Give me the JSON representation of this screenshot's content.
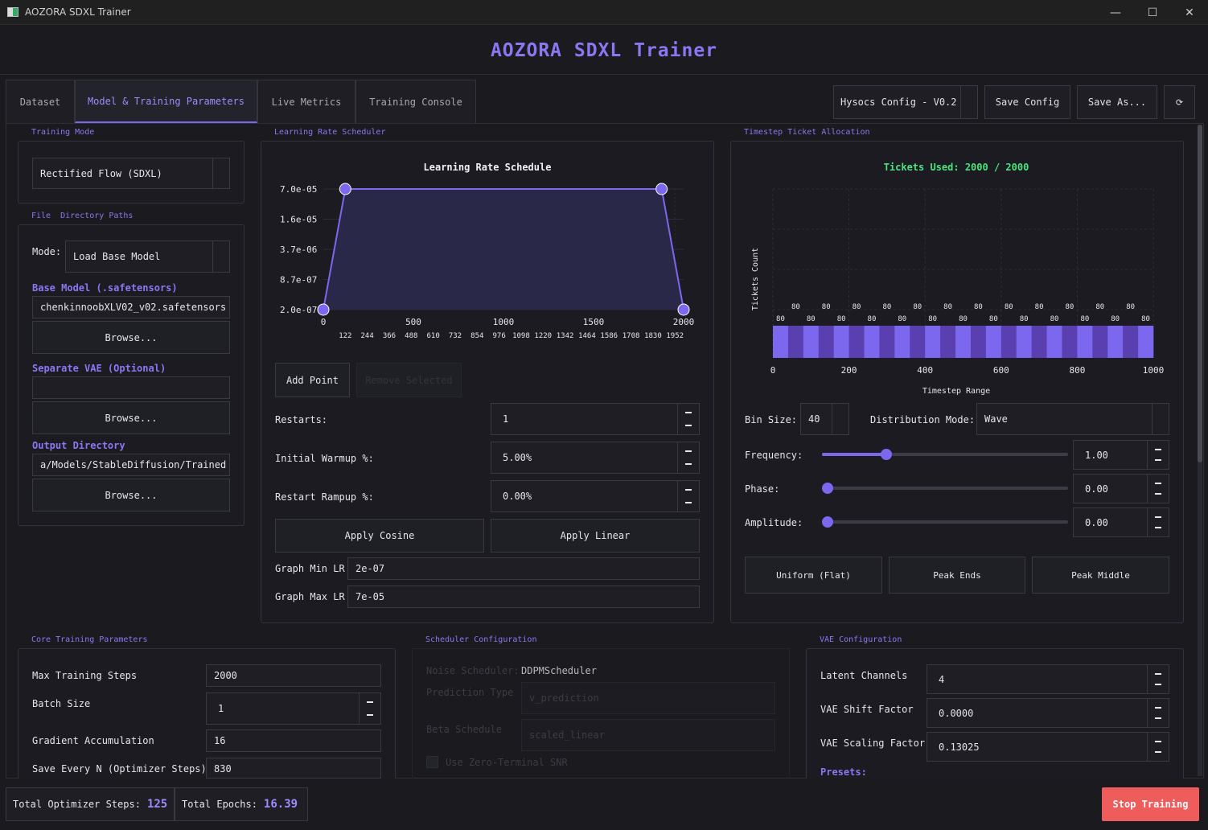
{
  "window": {
    "title": "AOZORA SDXL Trainer",
    "min_label": "—",
    "max_label": "☐",
    "close_label": "✕"
  },
  "app": {
    "title": "AOZORA SDXL Trainer"
  },
  "tabs": [
    {
      "label": "Dataset"
    },
    {
      "label": "Model & Training Parameters"
    },
    {
      "label": "Live Metrics"
    },
    {
      "label": "Training Console"
    }
  ],
  "toolbar": {
    "config_select": "Hysocs Config - V0.2",
    "save_config": "Save Config",
    "save_as": "Save As...",
    "refresh_icon": "⟳"
  },
  "training_mode": {
    "section": "Training Mode",
    "value": "Rectified Flow (SDXL)"
  },
  "paths": {
    "section": "File  Directory Paths",
    "mode_label": "Mode:",
    "mode_value": "Load Base Model",
    "base_model_label": "Base Model (.safetensors)",
    "base_model_value": "chenkinnoobXLV02_v02.safetensors",
    "vae_label": "Separate VAE (Optional)",
    "vae_value": "",
    "output_label": "Output Directory",
    "output_value": "a/Models/StableDiffusion/Trained",
    "browse": "Browse..."
  },
  "lr": {
    "section": "Learning Rate Scheduler",
    "add_point": "Add Point",
    "remove_selected": "Remove Selected",
    "restarts_label": "Restarts:",
    "restarts_value": "1",
    "warmup_label": "Initial Warmup %:",
    "warmup_value": "5.00%",
    "rampup_label": "Restart Rampup %:",
    "rampup_value": "0.00%",
    "apply_cosine": "Apply Cosine",
    "apply_linear": "Apply Linear",
    "min_lr_label": "Graph Min LR",
    "min_lr_value": "2e-07",
    "max_lr_label": "Graph Max LR",
    "max_lr_value": "7e-05"
  },
  "tickets": {
    "section": "Timestep Ticket Allocation",
    "bin_size_label": "Bin Size:",
    "bin_size_value": "40",
    "dist_mode_label": "Distribution Mode:",
    "dist_mode_value": "Wave",
    "frequency_label": "Frequency:",
    "frequency_value": "1.00",
    "frequency_level": 0.25,
    "phase_label": "Phase:",
    "phase_value": "0.00",
    "phase_level": 0,
    "amplitude_label": "Amplitude:",
    "amplitude_value": "0.00",
    "amplitude_level": 0,
    "uniform": "Uniform (Flat)",
    "peak_ends": "Peak Ends",
    "peak_middle": "Peak Middle"
  },
  "core": {
    "section": "Core Training Parameters",
    "max_steps_label": "Max Training Steps",
    "max_steps_value": "2000",
    "batch_label": "Batch Size",
    "batch_value": "1",
    "grad_accum_label": "Gradient Accumulation",
    "grad_accum_value": "16",
    "save_every_label": "Save Every N (Optimizer Steps)",
    "save_every_value": "830"
  },
  "scheduler_cfg": {
    "section": "Scheduler Configuration",
    "noise_label": "Noise Scheduler:",
    "noise_value": "DDPMScheduler",
    "prediction_label": "Prediction Type",
    "prediction_value": "v_prediction",
    "beta_label": "Beta Schedule",
    "beta_value": "scaled_linear",
    "zero_snr_label": "Use Zero-Terminal SNR"
  },
  "vae_cfg": {
    "section": "VAE Configuration",
    "latent_label": "Latent Channels",
    "latent_value": "4",
    "shift_label": "VAE Shift Factor",
    "shift_value": "0.0000",
    "scale_label": "VAE Scaling Factor",
    "scale_value": "0.13025",
    "presets_label": "Presets:"
  },
  "status": {
    "opt_steps_label": "Total Optimizer Steps:",
    "opt_steps_value": "125",
    "epochs_label": "Total Epochs:",
    "epochs_value": "16.39",
    "stop": "Stop Training"
  },
  "chart_data": [
    {
      "type": "line",
      "title": "Learning Rate Schedule",
      "x": [
        0,
        122,
        1878,
        2000
      ],
      "y": [
        2e-07,
        7e-05,
        7e-05,
        2e-07
      ],
      "y_scale": "log",
      "y_ticks": [
        "7.0e-05",
        "1.6e-05",
        "3.7e-06",
        "8.7e-07",
        "2.0e-07"
      ],
      "x_ticks": [
        "0",
        "500",
        "1000",
        "1500",
        "2000"
      ],
      "x_minor_ticks": [
        "122",
        "244",
        "366",
        "488",
        "610",
        "732",
        "854",
        "976",
        "1098",
        "1220",
        "1342",
        "1464",
        "1586",
        "1708",
        "1830",
        "1952"
      ],
      "xlim": [
        0,
        2000
      ],
      "colors": {
        "line": "#7b68ee",
        "fill": "#2c2a4a",
        "point": "#7b68ee"
      }
    },
    {
      "type": "bar",
      "title": "Tickets Used: 2000 / 2000",
      "xlabel": "Timestep Range",
      "ylabel": "Tickets Count",
      "x_ticks": [
        "0",
        "200",
        "400",
        "600",
        "800",
        "1000"
      ],
      "xlim": [
        0,
        1000
      ],
      "bin_width": 40,
      "values": [
        80,
        80,
        80,
        80,
        80,
        80,
        80,
        80,
        80,
        80,
        80,
        80,
        80,
        80,
        80,
        80,
        80,
        80,
        80,
        80,
        80,
        80,
        80,
        80,
        80
      ],
      "colors": {
        "bar_a": "#7b68ee",
        "bar_b": "#5a3fb0",
        "title": "#4be37f"
      }
    }
  ]
}
